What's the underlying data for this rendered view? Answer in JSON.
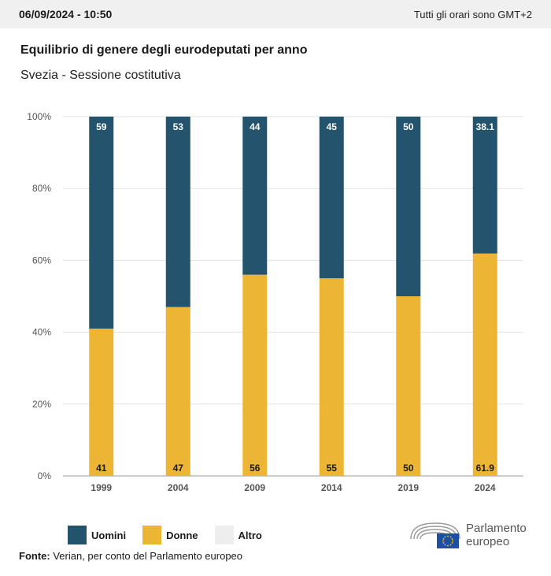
{
  "header": {
    "datetime": "06/09/2024 - 10:50",
    "timezone_note": "Tutti gli orari sono GMT+2"
  },
  "title": "Equilibrio di genere degli eurodeputati per anno",
  "subtitle": "Svezia - Sessione costitutiva",
  "colors": {
    "uomini": "#24536e",
    "donne": "#edb534",
    "altro": "#eeeeee"
  },
  "legend": [
    {
      "key": "uomini",
      "label": "Uomini"
    },
    {
      "key": "donne",
      "label": "Donne"
    },
    {
      "key": "altro",
      "label": "Altro"
    }
  ],
  "source": {
    "label": "Fonte:",
    "text": "Verian, per conto del Parlamento europeo"
  },
  "logo": {
    "line1": "Parlamento",
    "line2": "europeo",
    "icon": "eu-parliament-logo-icon"
  },
  "chart_data": {
    "type": "bar",
    "stacked": true,
    "title": "Equilibrio di genere degli eurodeputati per anno",
    "subtitle": "Svezia - Sessione costitutiva",
    "categories": [
      "1999",
      "2004",
      "2009",
      "2014",
      "2019",
      "2024"
    ],
    "series": [
      {
        "name": "Donne",
        "values": [
          41,
          47,
          56,
          55,
          50,
          61.9
        ],
        "labels": [
          "41",
          "47",
          "56",
          "55",
          "50",
          "61.9"
        ]
      },
      {
        "name": "Uomini",
        "values": [
          59,
          53,
          44,
          45,
          50,
          38.1
        ],
        "labels": [
          "59",
          "53",
          "44",
          "45",
          "50",
          "38.1"
        ]
      },
      {
        "name": "Altro",
        "values": [
          0,
          0,
          0,
          0,
          0,
          0
        ]
      }
    ],
    "ylim": [
      0,
      100
    ],
    "yticks": [
      "0%",
      "20%",
      "40%",
      "60%",
      "80%",
      "100%"
    ],
    "grid": true,
    "legend_position": "bottom-left"
  }
}
